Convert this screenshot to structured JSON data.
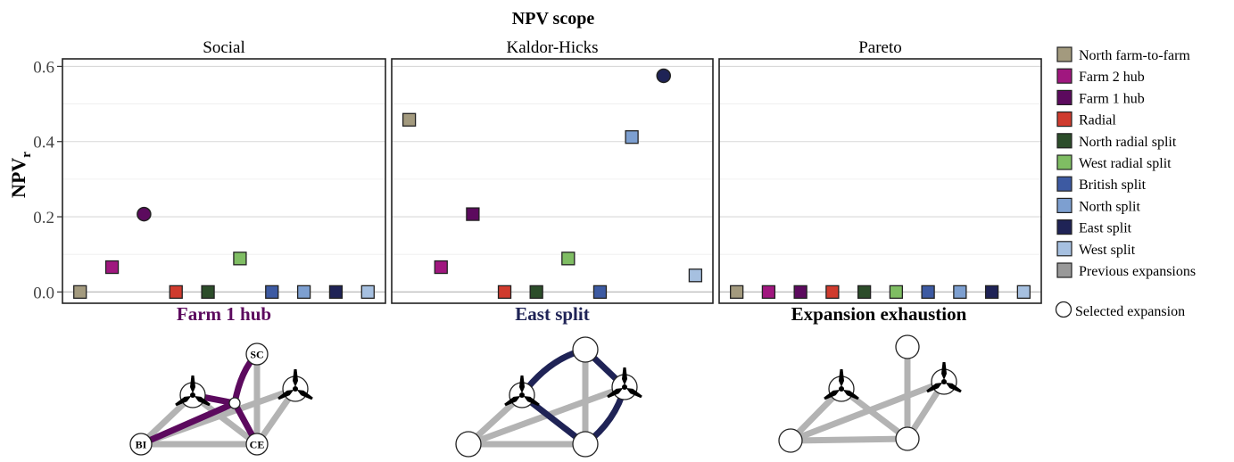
{
  "colors": {
    "North farm-to-farm": "#a39a7e",
    "Farm 2 hub": "#a0177f",
    "Farm 1 hub": "#5c0a5e",
    "Radial": "#cf3b2e",
    "North radial split": "#2c4d2a",
    "West radial split": "#7fbd63",
    "British split": "#3d5aa2",
    "North split": "#7d9fd0",
    "East split": "#1f2356",
    "West split": "#a6c0e0",
    "Previous expansions": "#999999",
    "gray_edge": "#b3b3b3"
  },
  "chart_data": {
    "type": "scatter",
    "title": "NPV scope",
    "ylabel": "NPV",
    "ylabel_sub": "r",
    "ylim": [
      -0.03,
      0.62
    ],
    "yticks": [
      0.0,
      0.2,
      0.4,
      0.6
    ],
    "ytick_labels": [
      "0.0",
      "0.2",
      "0.4",
      "0.6"
    ],
    "grid": true,
    "legend_position": "right",
    "categories": [
      "North farm-to-farm",
      "Farm 2 hub",
      "Farm 1 hub",
      "Radial",
      "North radial split",
      "West radial split",
      "British split",
      "North split",
      "East split",
      "West split"
    ],
    "panels": [
      {
        "name": "Social",
        "values": [
          0.0,
          0.066,
          0.207,
          0.0,
          0.0,
          0.089,
          0.0,
          0.0,
          0.0,
          0.0
        ],
        "selected": "Farm 1 hub"
      },
      {
        "name": "Kaldor-Hicks",
        "values": [
          0.458,
          0.066,
          0.207,
          0.0,
          0.0,
          0.089,
          0.0,
          0.412,
          0.575,
          0.044
        ],
        "selected": "East split"
      },
      {
        "name": "Pareto",
        "values": [
          0.0,
          0.0,
          0.0,
          0.0,
          0.0,
          0.0,
          0.0,
          0.0,
          0.0,
          0.0
        ],
        "selected": null
      }
    ],
    "legend": [
      "North farm-to-farm",
      "Farm 2 hub",
      "Farm 1 hub",
      "Radial",
      "North radial split",
      "West radial split",
      "British split",
      "North split",
      "East split",
      "West split",
      "Previous expansions"
    ],
    "legend_selected": "Selected expansion"
  },
  "networks": [
    {
      "title": "Farm 1 hub",
      "title_color": "#5c0a5e",
      "node_labels": [
        "SC",
        "BI",
        "CE"
      ]
    },
    {
      "title": "East split",
      "title_color": "#1f2356"
    },
    {
      "title": "Expansion exhaustion",
      "title_color": "#000000"
    }
  ]
}
